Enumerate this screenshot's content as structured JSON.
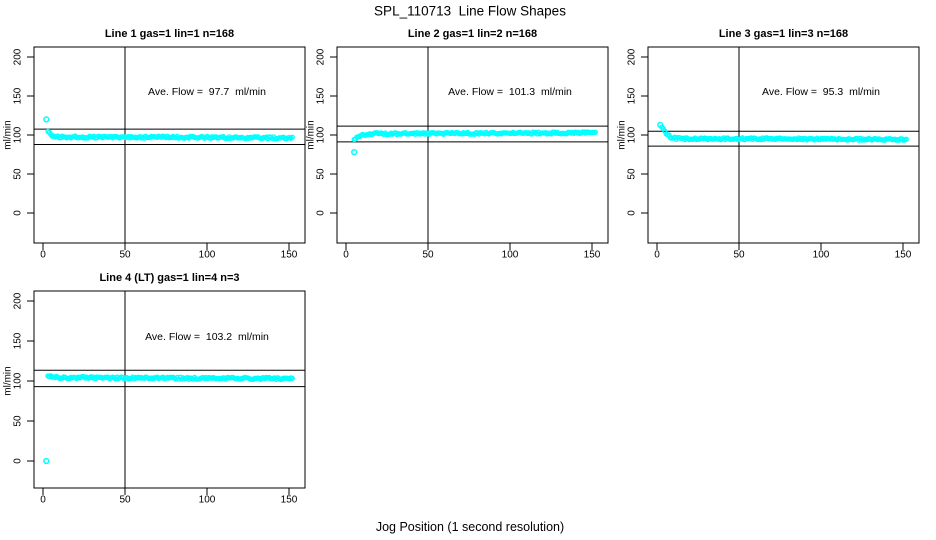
{
  "page": {
    "title": "SPL_110713  Line Flow Shapes",
    "xlabel": "Jog Position (1 second resolution)"
  },
  "colors": {
    "marker": "#00FFFF",
    "axis": "#000000",
    "background": "#FFFFFF"
  },
  "chart_data": [
    {
      "type": "scatter",
      "title": "Line 1 gas=1 lin=1 n=168",
      "line": 1,
      "gas": 1,
      "lin": 1,
      "n": 168,
      "annotation": "Ave. Flow =  97.7  ml/min",
      "ave_flow_ml_min": 97.7,
      "ylabel": "ml/min",
      "xlim": [
        0,
        150
      ],
      "ylim": [
        0,
        200
      ],
      "x_ticks": [
        0,
        50,
        100,
        150
      ],
      "y_ticks": [
        0,
        50,
        100,
        150,
        200
      ],
      "vline_x": 50,
      "hlines": [
        107.5,
        87.9
      ],
      "outliers": [
        [
          2,
          120
        ]
      ],
      "flow_profile": [
        [
          3,
          106
        ],
        [
          5,
          100
        ],
        [
          8,
          97.5
        ],
        [
          80,
          97.2
        ],
        [
          152,
          96.2
        ]
      ],
      "marker": "open-circle"
    },
    {
      "type": "scatter",
      "title": "Line 2 gas=1 lin=2 n=168",
      "line": 2,
      "gas": 1,
      "lin": 2,
      "n": 168,
      "annotation": "Ave. Flow =  101.3  ml/min",
      "ave_flow_ml_min": 101.3,
      "ylabel": "ml/min",
      "xlim": [
        0,
        150
      ],
      "ylim": [
        0,
        200
      ],
      "x_ticks": [
        0,
        50,
        100,
        150
      ],
      "y_ticks": [
        0,
        50,
        100,
        150,
        200
      ],
      "vline_x": 50,
      "hlines": [
        111.4,
        91.2
      ],
      "outliers": [
        [
          5,
          78
        ]
      ],
      "flow_profile": [
        [
          5,
          93
        ],
        [
          7,
          97
        ],
        [
          11,
          100.5
        ],
        [
          16,
          101.8
        ],
        [
          80,
          102.2
        ],
        [
          152,
          102.8
        ]
      ],
      "marker": "open-circle"
    },
    {
      "type": "scatter",
      "title": "Line 3 gas=1 lin=3 n=168",
      "line": 3,
      "gas": 1,
      "lin": 3,
      "n": 168,
      "annotation": "Ave. Flow =  95.3  ml/min",
      "ave_flow_ml_min": 95.3,
      "ylabel": "ml/min",
      "xlim": [
        0,
        150
      ],
      "ylim": [
        0,
        200
      ],
      "x_ticks": [
        0,
        50,
        100,
        150
      ],
      "y_ticks": [
        0,
        50,
        100,
        150,
        200
      ],
      "vline_x": 50,
      "hlines": [
        104.8,
        85.8
      ],
      "outliers": [
        [
          2,
          113
        ]
      ],
      "flow_profile": [
        [
          3,
          110
        ],
        [
          5,
          104
        ],
        [
          8,
          97.5
        ],
        [
          12,
          95.5
        ],
        [
          80,
          95
        ],
        [
          152,
          94
        ]
      ],
      "marker": "open-circle"
    },
    {
      "type": "scatter",
      "title": "Line 4 (LT) gas=1 lin=4 n=3",
      "line": 4,
      "gas": 1,
      "lin": 4,
      "n": 3,
      "annotation": "Ave. Flow =  103.2  ml/min",
      "ave_flow_ml_min": 103.2,
      "ylabel": "ml/min",
      "xlim": [
        0,
        150
      ],
      "ylim": [
        0,
        200
      ],
      "x_ticks": [
        0,
        50,
        100,
        150
      ],
      "y_ticks": [
        0,
        50,
        100,
        150,
        200
      ],
      "vline_x": 50,
      "hlines": [
        113.5,
        92.9
      ],
      "outliers": [
        [
          2,
          0
        ]
      ],
      "flow_profile": [
        [
          3,
          105.5
        ],
        [
          10,
          104.5
        ],
        [
          80,
          103.5
        ],
        [
          152,
          103.2
        ]
      ],
      "marker": "open-circle"
    }
  ]
}
